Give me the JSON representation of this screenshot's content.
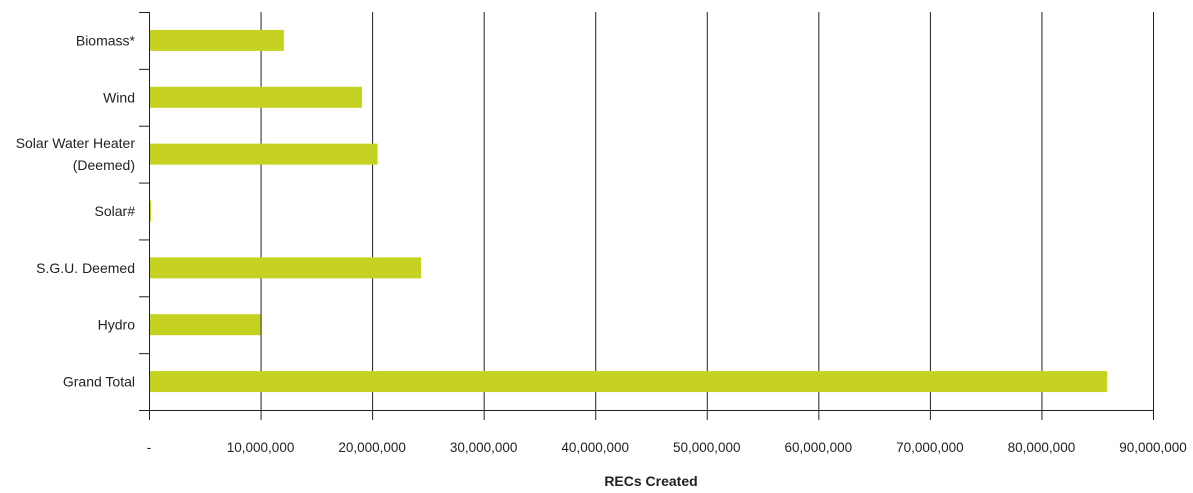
{
  "chart_data": {
    "type": "bar",
    "orientation": "horizontal",
    "categories": [
      "Biomass*",
      "Wind",
      "Solar Water Heater (Deemed)",
      "Solar#",
      "S.G.U. Deemed",
      "Hydro",
      "Grand Total"
    ],
    "category_lines": [
      [
        "Biomass*"
      ],
      [
        "Wind"
      ],
      [
        "Solar Water Heater",
        "(Deemed)"
      ],
      [
        "Solar#"
      ],
      [
        "S.G.U. Deemed"
      ],
      [
        "Hydro"
      ],
      [
        "Grand Total"
      ]
    ],
    "values": [
      12000000,
      19000000,
      20400000,
      100000,
      24300000,
      9900000,
      85800000
    ],
    "xlabel": "RECs Created",
    "xlim": [
      0,
      90000000
    ],
    "x_ticks": [
      0,
      10000000,
      20000000,
      30000000,
      40000000,
      50000000,
      60000000,
      70000000,
      80000000,
      90000000
    ],
    "x_tick_labels": [
      "-",
      "10,000,000",
      "20,000,000",
      "30,000,000",
      "40,000,000",
      "50,000,000",
      "60,000,000",
      "70,000,000",
      "80,000,000",
      "90,000,000"
    ],
    "grid": "vertical",
    "bar_color": "#c5d221",
    "gridline_color": "#231f20"
  }
}
